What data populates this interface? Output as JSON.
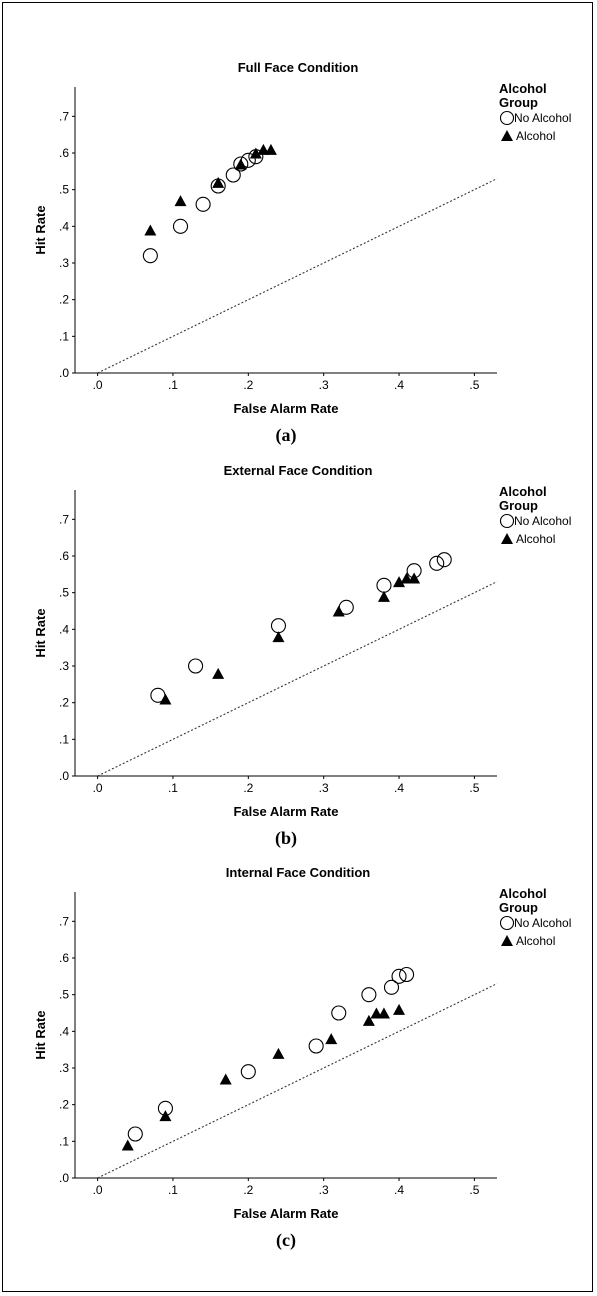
{
  "charts": [
    {
      "title": "Full Face Condition",
      "xlabel": "False Alarm Rate",
      "ylabel": "Hit Rate",
      "caption": "(a)",
      "legend": {
        "title_line1": "Alcohol",
        "title_line2": "Group",
        "items": [
          "No Alcohol",
          "Alcohol"
        ]
      }
    },
    {
      "title": "External Face Condition",
      "xlabel": "False Alarm Rate",
      "ylabel": "Hit Rate",
      "caption": "(b)",
      "legend": {
        "title_line1": "Alcohol",
        "title_line2": "Group",
        "items": [
          "No Alcohol",
          "Alcohol"
        ]
      }
    },
    {
      "title": "Internal Face Condition",
      "xlabel": "False Alarm Rate",
      "ylabel": "Hit Rate",
      "caption": "(c)",
      "legend": {
        "title_line1": "Alcohol",
        "title_line2": "Group",
        "items": [
          "No Alcohol",
          "Alcohol"
        ]
      }
    }
  ],
  "chart_data": [
    {
      "type": "scatter",
      "title": "Full Face Condition",
      "xlabel": "False Alarm Rate",
      "ylabel": "Hit Rate",
      "xlim": [
        -0.03,
        0.53
      ],
      "ylim": [
        0.0,
        0.78
      ],
      "xticks": [
        ".0",
        ".1",
        ".2",
        ".3",
        ".4",
        ".5"
      ],
      "yticks": [
        ".0",
        ".1",
        ".2",
        ".3",
        ".4",
        ".5",
        ".6",
        ".7"
      ],
      "reference_line": "y = x (dotted)",
      "legend_placement": "right",
      "series": [
        {
          "name": "No Alcohol",
          "marker": "open-circle",
          "x": [
            0.07,
            0.11,
            0.14,
            0.16,
            0.18,
            0.19,
            0.2,
            0.21
          ],
          "y": [
            0.32,
            0.4,
            0.46,
            0.51,
            0.54,
            0.57,
            0.58,
            0.59
          ]
        },
        {
          "name": "Alcohol",
          "marker": "filled-triangle",
          "x": [
            0.07,
            0.11,
            0.16,
            0.19,
            0.21,
            0.22,
            0.23
          ],
          "y": [
            0.39,
            0.47,
            0.52,
            0.57,
            0.6,
            0.61,
            0.61
          ]
        }
      ]
    },
    {
      "type": "scatter",
      "title": "External Face Condition",
      "xlabel": "False Alarm Rate",
      "ylabel": "Hit Rate",
      "xlim": [
        -0.03,
        0.53
      ],
      "ylim": [
        0.0,
        0.78
      ],
      "xticks": [
        ".0",
        ".1",
        ".2",
        ".3",
        ".4",
        ".5"
      ],
      "yticks": [
        ".0",
        ".1",
        ".2",
        ".3",
        ".4",
        ".5",
        ".6",
        ".7"
      ],
      "reference_line": "y = x (dotted)",
      "legend_placement": "right",
      "series": [
        {
          "name": "No Alcohol",
          "marker": "open-circle",
          "x": [
            0.08,
            0.13,
            0.24,
            0.33,
            0.38,
            0.42,
            0.45,
            0.46
          ],
          "y": [
            0.22,
            0.3,
            0.41,
            0.46,
            0.52,
            0.56,
            0.58,
            0.59
          ]
        },
        {
          "name": "Alcohol",
          "marker": "filled-triangle",
          "x": [
            0.09,
            0.16,
            0.24,
            0.32,
            0.38,
            0.4,
            0.41,
            0.42
          ],
          "y": [
            0.21,
            0.28,
            0.38,
            0.45,
            0.49,
            0.53,
            0.54,
            0.54
          ]
        }
      ]
    },
    {
      "type": "scatter",
      "title": "Internal Face Condition",
      "xlabel": "False Alarm Rate",
      "ylabel": "Hit Rate",
      "xlim": [
        -0.03,
        0.53
      ],
      "ylim": [
        0.0,
        0.78
      ],
      "xticks": [
        ".0",
        ".1",
        ".2",
        ".3",
        ".4",
        ".5"
      ],
      "yticks": [
        ".0",
        ".1",
        ".2",
        ".3",
        ".4",
        ".5",
        ".6",
        ".7"
      ],
      "reference_line": "y = x (dotted)",
      "legend_placement": "right",
      "series": [
        {
          "name": "No Alcohol",
          "marker": "open-circle",
          "x": [
            0.05,
            0.09,
            0.2,
            0.29,
            0.32,
            0.36,
            0.39,
            0.4,
            0.41
          ],
          "y": [
            0.12,
            0.19,
            0.29,
            0.36,
            0.45,
            0.5,
            0.52,
            0.55,
            0.555
          ]
        },
        {
          "name": "Alcohol",
          "marker": "filled-triangle",
          "x": [
            0.04,
            0.09,
            0.17,
            0.24,
            0.31,
            0.36,
            0.37,
            0.38,
            0.4
          ],
          "y": [
            0.09,
            0.17,
            0.27,
            0.34,
            0.38,
            0.43,
            0.45,
            0.45,
            0.46
          ]
        }
      ]
    }
  ]
}
